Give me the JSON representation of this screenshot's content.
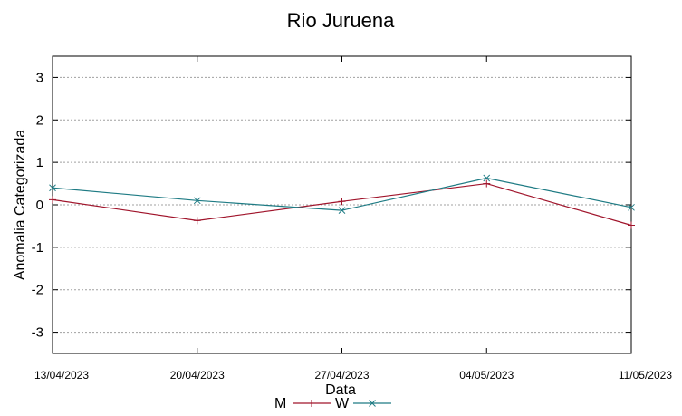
{
  "chart_data": {
    "type": "line",
    "title": "Rio Juruena",
    "xlabel": "Data",
    "ylabel": "Anomalia Categorizada",
    "categories": [
      "13/04/2023",
      "20/04/2023",
      "27/04/2023",
      "04/05/2023",
      "11/05/2023"
    ],
    "ylim": [
      -3.5,
      3.5
    ],
    "yticks": [
      -3,
      -2,
      -1,
      0,
      1,
      2,
      3
    ],
    "grid": true,
    "legend_position": "bottom",
    "series": [
      {
        "name": "M",
        "values": [
          0.12,
          -0.37,
          0.08,
          0.5,
          -0.48
        ],
        "color": "#a0142b",
        "marker": "plus"
      },
      {
        "name": "W",
        "values": [
          0.4,
          0.1,
          -0.13,
          0.63,
          -0.06
        ],
        "color": "#1e7b84",
        "marker": "cross"
      }
    ]
  }
}
